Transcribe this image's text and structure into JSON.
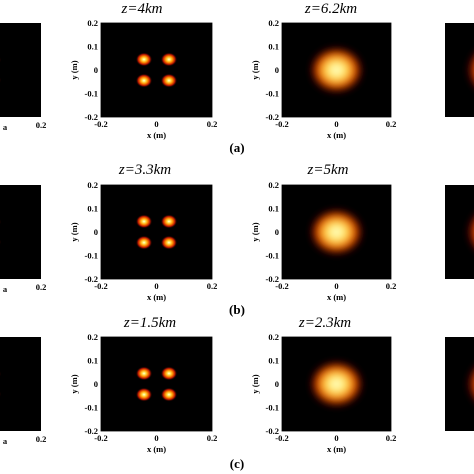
{
  "rows": [
    {
      "label": "(a)",
      "panels": [
        {
          "title": "",
          "pattern": "four-spots",
          "spread": 0.95
        },
        {
          "title": "z=4km",
          "pattern": "four-spots",
          "spread": 1.0
        },
        {
          "title": "z=6.2km",
          "pattern": "flat-top",
          "spread": 1.0
        },
        {
          "title": "",
          "pattern": "flat-top",
          "spread": 1.25
        }
      ]
    },
    {
      "label": "(b)",
      "panels": [
        {
          "title": "",
          "pattern": "four-spots",
          "spread": 0.95
        },
        {
          "title": "z=3.3km",
          "pattern": "four-spots",
          "spread": 1.0
        },
        {
          "title": "z=5km",
          "pattern": "flat-top",
          "spread": 1.0
        },
        {
          "title": "",
          "pattern": "flat-top",
          "spread": 1.25
        }
      ]
    },
    {
      "label": "(c)",
      "panels": [
        {
          "title": "",
          "pattern": "four-spots",
          "spread": 0.95
        },
        {
          "title": "z=1.5km",
          "pattern": "four-spots",
          "spread": 1.0
        },
        {
          "title": "z=2.3km",
          "pattern": "flat-top",
          "spread": 1.0
        },
        {
          "title": "",
          "pattern": "flat-top",
          "spread": 1.25
        }
      ]
    }
  ],
  "axes": {
    "xlabel": "x (m)",
    "ylabel": "y (m)",
    "xticks": [
      "-0.2",
      "0",
      "0.2"
    ],
    "yticks": [
      "0.2",
      "0.1",
      "0",
      "-0.1",
      "-0.2"
    ],
    "xlim": [
      -0.2,
      0.2
    ],
    "ylim": [
      -0.2,
      0.2
    ],
    "cut_xlabel": "a",
    "cut_xtick": "0.2"
  },
  "colormap": "hot"
}
